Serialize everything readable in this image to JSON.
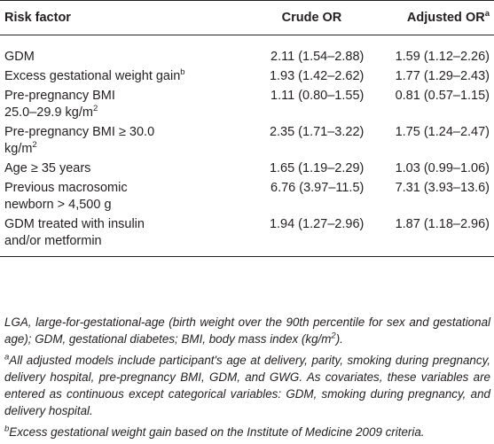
{
  "header": {
    "col1": "Risk factor",
    "col2": "Crude OR",
    "col3": "Adjusted OR",
    "col3_sup": "a"
  },
  "rows": [
    {
      "label": "GDM",
      "crude": "2.11 (1.54–2.88)",
      "adjusted": "1.59 (1.12–2.26)"
    },
    {
      "label": "Excess gestational weight gain",
      "label_sup": "b",
      "crude": "1.93 (1.42–2.62)",
      "adjusted": "1.77 (1.29–2.43)"
    },
    {
      "label_line1": "Pre-pregnancy BMI",
      "label_line2": "25.0–29.9 kg/m",
      "label_sup": "2",
      "crude": "1.11 (0.80–1.55)",
      "adjusted": "0.81 (0.57–1.15)"
    },
    {
      "label_line1": "Pre-pregnancy BMI ≥ 30.0",
      "label_line2": "kg/m",
      "label_sup": "2",
      "crude": "2.35 (1.71–3.22)",
      "adjusted": "1.75 (1.24–2.47)"
    },
    {
      "label": "Age ≥ 35 years",
      "crude": "1.65 (1.19–2.29)",
      "adjusted": "1.03 (0.99–1.06)"
    },
    {
      "label_line1": "Previous macrosomic",
      "label_line2": "newborn > 4,500 g",
      "crude": "6.76 (3.97–11.5)",
      "adjusted": "7.31 (3.93–13.6)"
    },
    {
      "label_line1": "GDM treated with insulin",
      "label_line2": "and/or metformin",
      "crude": "1.94 (1.27–2.96)",
      "adjusted": "1.87 (1.18–2.96)"
    }
  ],
  "footnotes": {
    "abbrev": "LGA, large-for-gestational-age (birth weight over the 90th percentile for sex and gestational age); GDM, gestational diabetes; BMI, body mass index (kg/m",
    "abbrev_sup": "2",
    "abbrev_end": ").",
    "a_mark": "a",
    "a_text": "All adjusted models include participant's age at delivery, parity, smoking during pregnancy, delivery hospital, pre-pregnancy BMI, GDM, and GWG. As covariates, these variables are entered as continuous except categorical variables: GDM, smoking during pregnancy, and delivery hospital.",
    "b_mark": "b",
    "b_text": "Excess gestational weight gain based on the Institute of Medicine 2009 criteria."
  }
}
